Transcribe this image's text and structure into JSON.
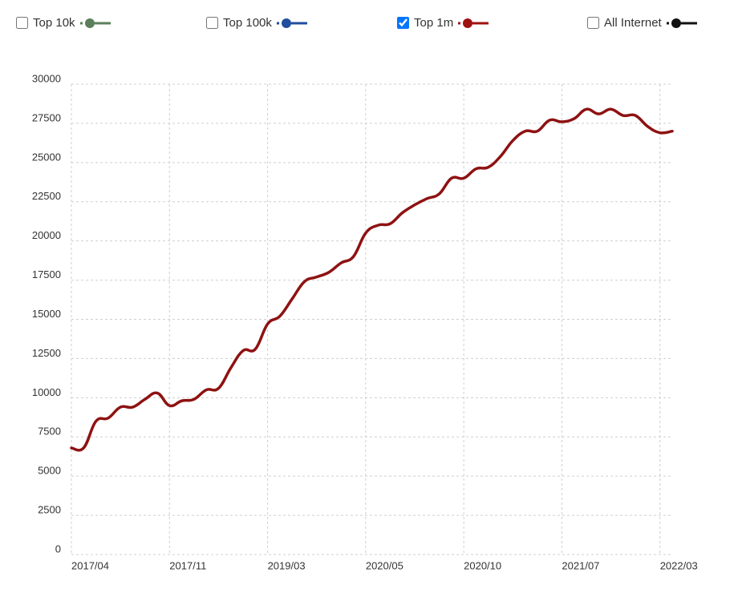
{
  "chart_data": {
    "type": "line",
    "legend": [
      {
        "name": "Top 10k",
        "color": "#5b7f5b",
        "checked": false
      },
      {
        "name": "Top 100k",
        "color": "#1f4e9c",
        "checked": false
      },
      {
        "name": "Top 1m",
        "color": "#a01010",
        "checked": true
      },
      {
        "name": "All Internet",
        "color": "#111111",
        "checked": false
      }
    ],
    "color": "#8e1212",
    "categories": [
      "2017/04",
      null,
      null,
      null,
      null,
      null,
      null,
      null,
      "2017/11",
      null,
      null,
      null,
      null,
      null,
      null,
      null,
      "2019/03",
      null,
      null,
      null,
      null,
      null,
      null,
      null,
      "2020/05",
      null,
      null,
      null,
      null,
      null,
      null,
      null,
      "2020/10",
      null,
      null,
      null,
      null,
      null,
      null,
      null,
      "2021/07",
      null,
      null,
      null,
      null,
      null,
      null,
      null,
      "2022/03",
      null
    ],
    "values": [
      6800,
      6800,
      8500,
      8700,
      9400,
      9400,
      9900,
      10300,
      9500,
      9800,
      9900,
      10500,
      10600,
      11900,
      13000,
      13100,
      14700,
      15200,
      16300,
      17400,
      17700,
      18000,
      18600,
      19000,
      20500,
      21000,
      21100,
      21800,
      22300,
      22700,
      23000,
      24000,
      24000,
      24600,
      24700,
      25400,
      26400,
      27000,
      27000,
      27700,
      27600,
      27800,
      28400,
      28100,
      28400,
      28000,
      28000,
      27300,
      26900,
      27000
    ],
    "ylim": [
      0,
      30000
    ],
    "yticks": [
      0,
      2500,
      5000,
      7500,
      10000,
      12500,
      15000,
      17500,
      20000,
      22500,
      25000,
      27500,
      30000
    ],
    "grid": true
  }
}
